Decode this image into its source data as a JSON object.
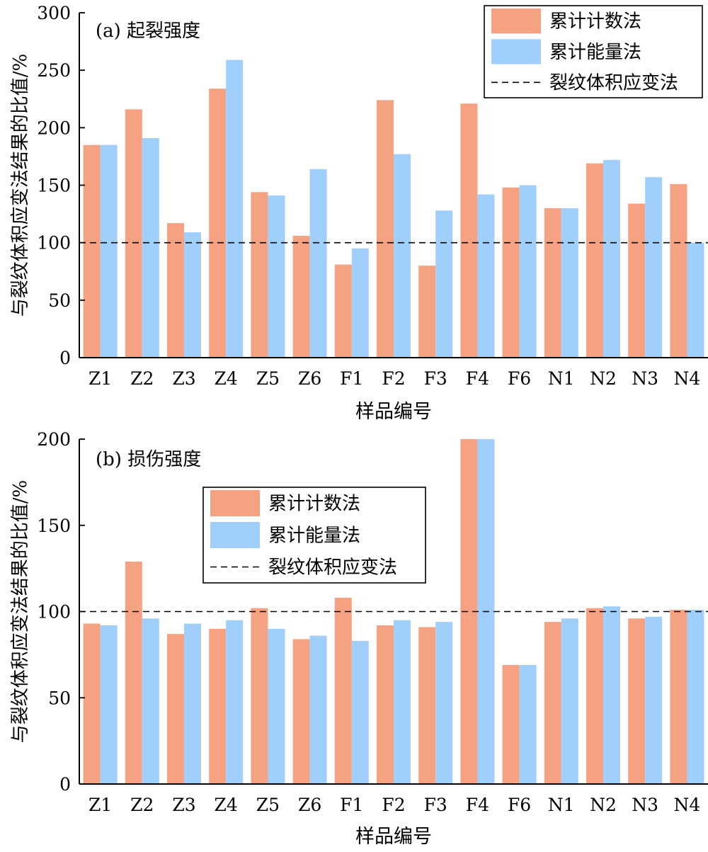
{
  "colors": {
    "count_bar": "#f4a281",
    "energy_bar": "#9fcffa",
    "reference_line": "#000000",
    "axis": "#000000"
  },
  "chart_data": [
    {
      "type": "bar",
      "panel_label": "(a) 起裂强度",
      "categories": [
        "Z1",
        "Z2",
        "Z3",
        "Z4",
        "Z5",
        "Z6",
        "F1",
        "F2",
        "F3",
        "F4",
        "F6",
        "N1",
        "N2",
        "N3",
        "N4"
      ],
      "series": [
        {
          "name": "累计计数法",
          "values": [
            185,
            216,
            117,
            234,
            144,
            106,
            81,
            224,
            80,
            221,
            148,
            130,
            169,
            134,
            151
          ]
        },
        {
          "name": "累计能量法",
          "values": [
            185,
            191,
            109,
            259,
            141,
            164,
            95,
            177,
            128,
            142,
            150,
            130,
            172,
            157,
            100
          ]
        }
      ],
      "reference_line": {
        "name": "裂纹体积应变法",
        "value": 100,
        "style": "dashed"
      },
      "xlabel": "样品编号",
      "ylabel": "与裂纹体积应变法结果的比值/%",
      "ylim": [
        0,
        300
      ],
      "yticks": [
        0,
        50,
        100,
        150,
        200,
        250,
        300
      ],
      "legend_position": "top-right",
      "grid": false
    },
    {
      "type": "bar",
      "panel_label": "(b) 损伤强度",
      "categories": [
        "Z1",
        "Z2",
        "Z3",
        "Z4",
        "Z5",
        "Z6",
        "F1",
        "F2",
        "F3",
        "F4",
        "F6",
        "N1",
        "N2",
        "N3",
        "N4"
      ],
      "series": [
        {
          "name": "累计计数法",
          "values": [
            93,
            129,
            87,
            90,
            102,
            84,
            108,
            92,
            91,
            200,
            69,
            94,
            102,
            96,
            101
          ]
        },
        {
          "name": "累计能量法",
          "values": [
            92,
            96,
            93,
            95,
            90,
            86,
            83,
            95,
            94,
            200,
            69,
            96,
            103,
            97,
            101
          ]
        }
      ],
      "reference_line": {
        "name": "裂纹体积应变法",
        "value": 100,
        "style": "dashed"
      },
      "xlabel": "样品编号",
      "ylabel": "与裂纹体积应变法结果的比值/%",
      "ylim": [
        0,
        200
      ],
      "yticks": [
        0,
        50,
        100,
        150,
        200
      ],
      "legend_position": "top-center",
      "grid": false
    }
  ]
}
